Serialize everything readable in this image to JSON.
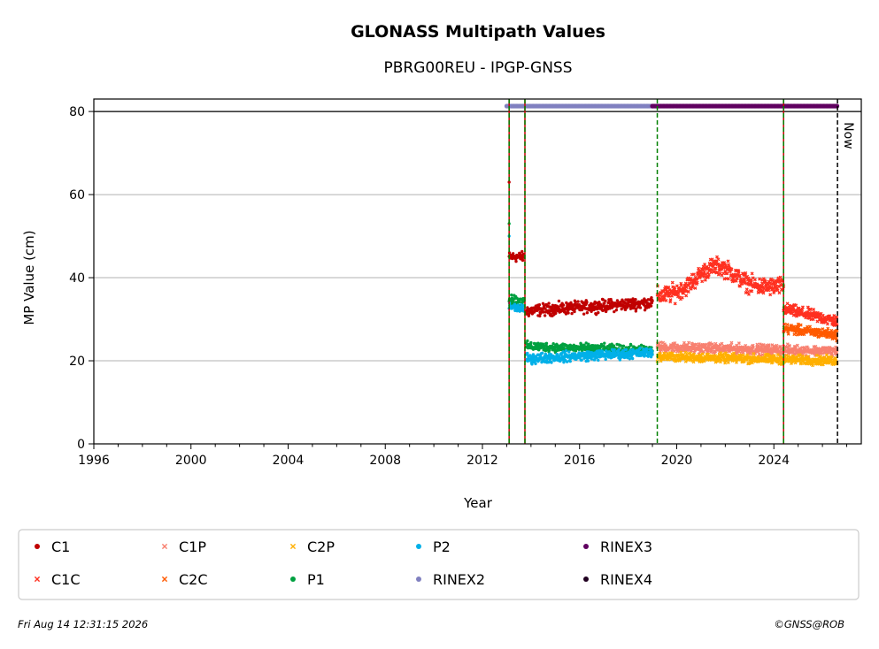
{
  "chart_data": {
    "type": "scatter",
    "title": "GLONASS Multipath Values",
    "subtitle": "PBRG00REU - IPGP-GNSS",
    "xlabel": "Year",
    "ylabel": "MP Value (cm)",
    "xlim": [
      1996,
      2027.6
    ],
    "ylim": [
      0,
      83
    ],
    "xticks": [
      1996,
      2000,
      2004,
      2008,
      2012,
      2016,
      2020,
      2024
    ],
    "yticks": [
      0,
      20,
      40,
      60,
      80
    ],
    "grid": "horizontal",
    "legend": {
      "placement": "below",
      "columns": 6
    },
    "series": [
      {
        "name": "C1",
        "color": "#c00000",
        "marker": "dot",
        "segments": [
          {
            "x": [
              2013.1,
              2013.7
            ],
            "y": [
              45,
              45
            ],
            "jitter": 1.0
          },
          {
            "x": [
              2013.8,
              2019.0
            ],
            "y": [
              32,
              34
            ],
            "jitter": 1.2
          }
        ],
        "outliers": [
          {
            "x": 2013.1,
            "y": 63
          }
        ]
      },
      {
        "name": "C1C",
        "color": "#ff3020",
        "marker": "x",
        "segments": [
          {
            "x": [
              2019.2,
              2024.4
            ],
            "y": [
              35.5,
              38
            ],
            "jitter": 1.8,
            "hump": {
              "center": 2021.6,
              "width": 1.1,
              "height": 6.0
            }
          },
          {
            "x": [
              2024.4,
              2026.6
            ],
            "y": [
              32.5,
              29.5
            ],
            "jitter": 1.2
          }
        ]
      },
      {
        "name": "C1P",
        "color": "#f88070",
        "marker": "x",
        "segments": [
          {
            "x": [
              2019.2,
              2026.6
            ],
            "y": [
              23.3,
              22.3
            ],
            "jitter": 1.0
          }
        ]
      },
      {
        "name": "C2C",
        "color": "#ff5a00",
        "marker": "x",
        "segments": [
          {
            "x": [
              2024.4,
              2026.6
            ],
            "y": [
              27.8,
              26.2
            ],
            "jitter": 1.0
          }
        ]
      },
      {
        "name": "C2P",
        "color": "#ffb000",
        "marker": "x",
        "segments": [
          {
            "x": [
              2019.2,
              2026.6
            ],
            "y": [
              21.0,
              20.0
            ],
            "jitter": 0.9
          }
        ]
      },
      {
        "name": "P1",
        "color": "#00a040",
        "marker": "dot",
        "segments": [
          {
            "x": [
              2013.1,
              2013.7
            ],
            "y": [
              35,
              34
            ],
            "jitter": 1.2
          },
          {
            "x": [
              2013.8,
              2019.0
            ],
            "y": [
              23.5,
              22.5
            ],
            "jitter": 0.9
          }
        ],
        "outliers": [
          {
            "x": 2013.1,
            "y": 53
          }
        ]
      },
      {
        "name": "P2",
        "color": "#00b0e8",
        "marker": "dot",
        "segments": [
          {
            "x": [
              2013.1,
              2013.7
            ],
            "y": [
              33,
              32.5
            ],
            "jitter": 0.8
          },
          {
            "x": [
              2013.8,
              2019.0
            ],
            "y": [
              20.5,
              22
            ],
            "jitter": 1.0
          }
        ],
        "outliers": [
          {
            "x": 2013.1,
            "y": 50
          }
        ]
      },
      {
        "name": "RINEX2",
        "color": "#8080c0",
        "marker": "dot",
        "bar": {
          "x": [
            2013.0,
            2019.0
          ],
          "y": 81.3
        }
      },
      {
        "name": "RINEX3",
        "color": "#600060",
        "marker": "dot",
        "bar": {
          "x": [
            2019.0,
            2026.6
          ],
          "y": 81.3
        }
      },
      {
        "name": "RINEX4",
        "color": "#200020",
        "marker": "dot"
      }
    ],
    "vlines": [
      {
        "x": 2013.1,
        "color": "#008000",
        "style": "dashed",
        "overlay": "#c00000"
      },
      {
        "x": 2013.75,
        "color": "#008000",
        "style": "dashed",
        "overlay": "#c00000"
      },
      {
        "x": 2019.2,
        "color": "#008000",
        "style": "dashed"
      },
      {
        "x": 2024.4,
        "color": "#008000",
        "style": "dashed",
        "overlay": "#c00000"
      },
      {
        "x": 2026.62,
        "color": "#000000",
        "style": "dashed"
      }
    ],
    "hline": {
      "y": 80,
      "color": "#000000"
    },
    "annotations": [
      {
        "text": "Now",
        "x": 2026.62,
        "y": 80,
        "rotation": 90
      }
    ]
  },
  "footer": {
    "timestamp": "Fri Aug 14 12:31:15 2026",
    "credit": "©GNSS@ROB"
  }
}
